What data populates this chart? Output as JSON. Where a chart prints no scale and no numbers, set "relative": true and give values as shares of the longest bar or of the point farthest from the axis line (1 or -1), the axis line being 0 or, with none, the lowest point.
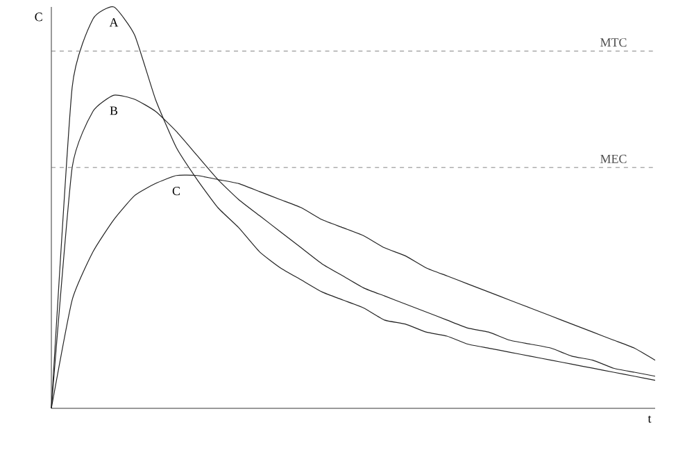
{
  "chart_data": {
    "type": "line",
    "relative": true,
    "xlabel": "t",
    "ylabel": "C",
    "categories": [
      null,
      null,
      null,
      null,
      null,
      null,
      null,
      null,
      null,
      null,
      null,
      null,
      null,
      null,
      null,
      null,
      null,
      null,
      null,
      null,
      null,
      null,
      null,
      null,
      null,
      null,
      null,
      null,
      null,
      null
    ],
    "series": [
      {
        "name": "A",
        "color": "#222222",
        "values": [
          0,
          0.8,
          0.97,
          1,
          0.93,
          0.77,
          0.65,
          0.57,
          0.5,
          0.45,
          0.39,
          0.35,
          0.32,
          0.29,
          0.27,
          0.25,
          0.22,
          0.21,
          0.19,
          0.18,
          0.16,
          0.15,
          0.14,
          0.13,
          0.12,
          0.11,
          0.1,
          0.09,
          0.08,
          0.07
        ]
      },
      {
        "name": "B",
        "color": "#222222",
        "values": [
          0,
          0.6,
          0.74,
          0.78,
          0.77,
          0.74,
          0.69,
          0.63,
          0.57,
          0.52,
          0.48,
          0.44,
          0.4,
          0.36,
          0.33,
          0.3,
          0.28,
          0.26,
          0.24,
          0.22,
          0.2,
          0.19,
          0.17,
          0.16,
          0.15,
          0.13,
          0.12,
          0.1,
          0.09,
          0.08
        ]
      },
      {
        "name": "C",
        "color": "#222222",
        "values": [
          0,
          0.27,
          0.39,
          0.47,
          0.53,
          0.56,
          0.58,
          0.58,
          0.57,
          0.56,
          0.54,
          0.52,
          0.5,
          0.47,
          0.45,
          0.43,
          0.4,
          0.38,
          0.35,
          0.33,
          0.31,
          0.29,
          0.27,
          0.25,
          0.23,
          0.21,
          0.19,
          0.17,
          0.15,
          0.12
        ]
      }
    ],
    "ref_lines": [
      {
        "axis": "y",
        "value": 0.89,
        "label": "MTC",
        "color": "#666666",
        "line_style": "dashed"
      },
      {
        "axis": "y",
        "value": 0.6,
        "label": "MEC",
        "color": "#666666",
        "line_style": "dashed"
      }
    ]
  }
}
